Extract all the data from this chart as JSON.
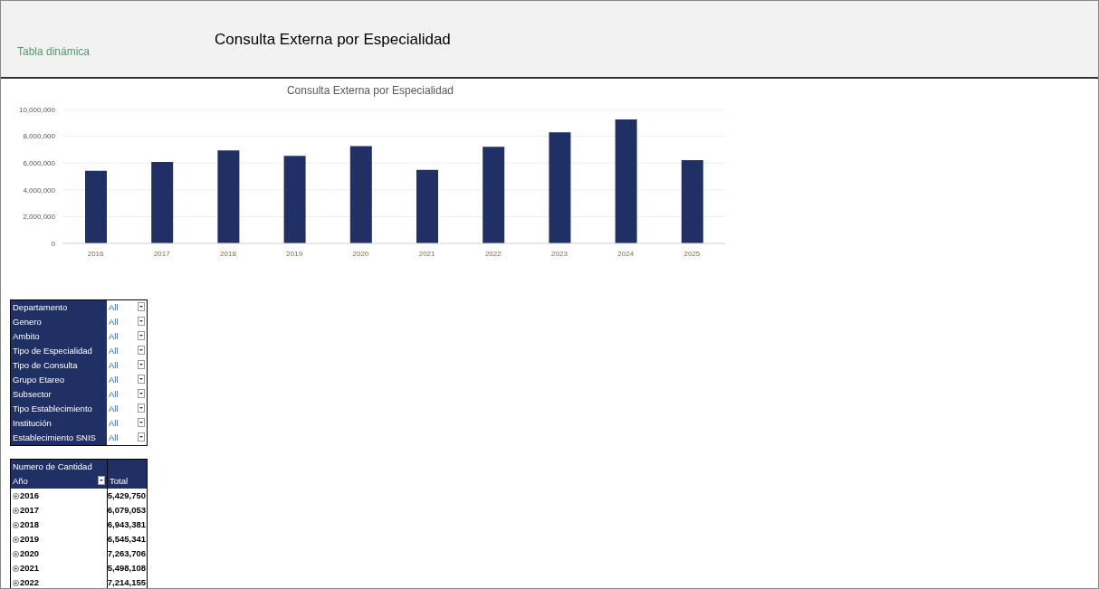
{
  "chart_data": {
    "type": "bar",
    "title": "Consulta Externa por Especialidad",
    "categories": [
      "2016",
      "2017",
      "2018",
      "2019",
      "2020",
      "2021",
      "2022",
      "2023",
      "2024",
      "2025"
    ],
    "values": [
      5429750,
      6079053,
      6943381,
      6545341,
      7263706,
      5498108,
      7214155,
      8300000,
      9260000,
      6220000
    ],
    "color": "#203064",
    "ylim": [
      0,
      10000000
    ],
    "yticks": [
      {
        "value": 0,
        "label": "0"
      },
      {
        "value": 2000000,
        "label": "2,000,000"
      },
      {
        "value": 4000000,
        "label": "4,000,000"
      },
      {
        "value": 6000000,
        "label": "6,000,000"
      },
      {
        "value": 8000000,
        "label": "8,000,000"
      },
      {
        "value": 10000000,
        "label": "10,000,000"
      }
    ],
    "grid": "y",
    "legend": false,
    "annotations": [
      "Consulta Externa por Especialidad",
      "Tabla dinámica",
      "Departamento",
      "All",
      "Genero",
      "All",
      "Ambito",
      "All",
      "Tipo de Especialidad",
      "All",
      "Tipo de Consulta",
      "All",
      "Grupo Etareo",
      "All",
      "Subsector",
      "All",
      "Tipo Establecimiento",
      "All",
      "Institución",
      "All",
      "Establecimiento SNIS",
      "All",
      "Numero de Cantidad",
      "Año",
      "Total",
      "2016",
      "5,429,750",
      "2017",
      "6,079,053",
      "2018",
      "6,943,381",
      "2019",
      "6,545,341",
      "2020",
      "7,263,706",
      "2021",
      "5,498,108",
      "2022",
      "7,214,155"
    ]
  }
}
